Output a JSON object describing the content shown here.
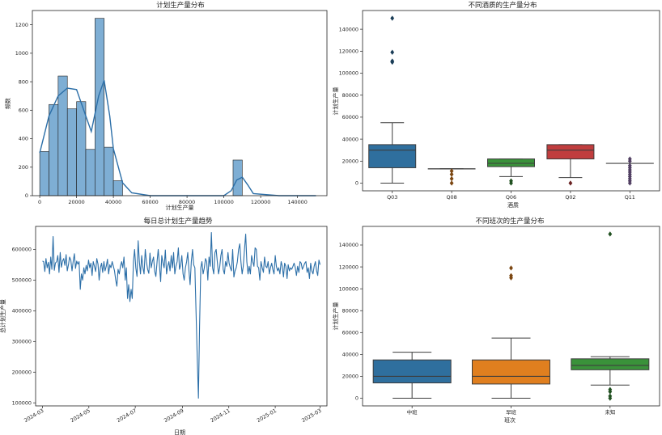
{
  "chart_data": [
    {
      "type": "histogram",
      "title": "计划生产量分布",
      "xlabel": "计划生产量",
      "ylabel": "频数",
      "xlim": [
        -4000,
        156000
      ],
      "ylim": [
        0,
        1300
      ],
      "xticks": [
        0,
        20000,
        40000,
        60000,
        80000,
        100000,
        120000,
        140000
      ],
      "yticks": [
        0,
        200,
        400,
        600,
        800,
        1000,
        1200
      ],
      "bin_width": 5000,
      "bins": [
        {
          "x0": 0,
          "x1": 5000,
          "count": 310
        },
        {
          "x0": 5000,
          "x1": 10000,
          "count": 640
        },
        {
          "x0": 10000,
          "x1": 15000,
          "count": 840
        },
        {
          "x0": 15000,
          "x1": 20000,
          "count": 610
        },
        {
          "x0": 20000,
          "x1": 25000,
          "count": 660
        },
        {
          "x0": 25000,
          "x1": 30000,
          "count": 325
        },
        {
          "x0": 30000,
          "x1": 35000,
          "count": 1245
        },
        {
          "x0": 35000,
          "x1": 40000,
          "count": 340
        },
        {
          "x0": 40000,
          "x1": 45000,
          "count": 105
        },
        {
          "x0": 105000,
          "x1": 110000,
          "count": 250
        }
      ],
      "kde": {
        "x": [
          0,
          5000,
          10000,
          15000,
          20000,
          25000,
          28000,
          32000,
          35000,
          38000,
          40000,
          45000,
          50000,
          60000,
          80000,
          100000,
          104000,
          107000,
          110000,
          113000,
          116000,
          130000,
          150000
        ],
        "y": [
          300,
          560,
          700,
          755,
          745,
          560,
          450,
          700,
          810,
          560,
          330,
          90,
          20,
          0,
          0,
          0,
          35,
          110,
          130,
          75,
          15,
          0,
          0
        ]
      },
      "bar_color": "#7eaed4",
      "line_color": "#2c6fa8"
    },
    {
      "type": "box",
      "title": "不同酒质的生产量分布",
      "xlabel": "酒质",
      "ylabel": "计划生产量",
      "ylim": [
        -7000,
        157000
      ],
      "yticks": [
        0,
        20000,
        40000,
        60000,
        80000,
        100000,
        120000,
        140000
      ],
      "categories": [
        "Q03",
        "Q08",
        "Q06",
        "Q02",
        "Q11"
      ],
      "boxes": [
        {
          "category": "Q03",
          "whisker_low": 0,
          "q1": 14000,
          "median": 30000,
          "q3": 35000,
          "whisker_high": 55000,
          "outliers": [
            110000,
            111000,
            119000,
            150000
          ],
          "color": "#2f6f9e"
        },
        {
          "category": "Q08",
          "whisker_low": 13000,
          "q1": 13000,
          "median": 13000,
          "q3": 13000,
          "whisker_high": 13000,
          "outliers": [
            0,
            4000,
            8000,
            11000
          ],
          "color": "#e07f1f"
        },
        {
          "category": "Q06",
          "whisker_low": 6000,
          "q1": 15000,
          "median": 18000,
          "q3": 22000,
          "whisker_high": 22000,
          "outliers": [
            0,
            2000
          ],
          "color": "#3a923a"
        },
        {
          "category": "Q02",
          "whisker_low": 5000,
          "q1": 22000,
          "median": 30000,
          "q3": 35000,
          "whisker_high": 35000,
          "outliers": [
            0
          ],
          "color": "#c03d3e"
        },
        {
          "category": "Q11",
          "whisker_low": 18000,
          "q1": 18000,
          "median": 18000,
          "q3": 18000,
          "whisker_high": 18000,
          "outliers": [
            0,
            2000,
            4000,
            6000,
            8000,
            10000,
            12000,
            14000,
            16000,
            20000,
            22000
          ],
          "color": "#9372b2"
        }
      ]
    },
    {
      "type": "line",
      "title": "每日总计划生产量趋势",
      "xlabel": "日期",
      "ylabel": "总计划生产量",
      "x_start": "2024-03-01",
      "x_end": "2025-03-01",
      "x_range": [
        "2024-02-21",
        "2025-03-10"
      ],
      "ylim": [
        90000,
        675000
      ],
      "yticks": [
        100000,
        200000,
        300000,
        400000,
        500000,
        600000
      ],
      "xticks": [
        "2024-03",
        "2024-05",
        "2024-07",
        "2024-09",
        "2024-11",
        "2025-01",
        "2025-03"
      ],
      "values": [
        562000,
        560000,
        528000,
        570000,
        540000,
        558000,
        520000,
        575000,
        535000,
        642000,
        532000,
        556000,
        560000,
        580000,
        525000,
        590000,
        542000,
        562000,
        570000,
        548000,
        583000,
        530000,
        550000,
        575000,
        565000,
        530000,
        560000,
        586000,
        538000,
        562000,
        552000,
        560000,
        470000,
        520000,
        500000,
        540000,
        520000,
        548000,
        530000,
        565000,
        540000,
        555000,
        515000,
        560000,
        545000,
        528000,
        570000,
        552000,
        500000,
        540000,
        555000,
        525000,
        560000,
        530000,
        545000,
        568000,
        520000,
        550000,
        540000,
        560000,
        545000,
        530000,
        500000,
        480000,
        535000,
        520000,
        545000,
        560000,
        540000,
        575000,
        500000,
        540000,
        440000,
        485000,
        430000,
        470000,
        440000,
        560000,
        600000,
        540000,
        512000,
        628000,
        560000,
        520000,
        580000,
        540000,
        520000,
        600000,
        560000,
        535000,
        522000,
        588000,
        540000,
        560000,
        575000,
        528000,
        512000,
        560000,
        600000,
        550000,
        495000,
        580000,
        556000,
        540000,
        598000,
        520000,
        545000,
        560000,
        530000,
        580000,
        540000,
        590000,
        520000,
        545000,
        560000,
        605000,
        535000,
        550000,
        580000,
        520000,
        500000,
        540000,
        560000,
        590000,
        530000,
        485000,
        560000,
        600000,
        550000,
        540000,
        400000,
        250000,
        115000,
        350000,
        540000,
        560000,
        520000,
        540000,
        570000,
        560000,
        500000,
        575000,
        545000,
        655000,
        540000,
        520000,
        590000,
        600000,
        560000,
        520000,
        540000,
        580000,
        600000,
        535000,
        520000,
        560000,
        545000,
        590000,
        555000,
        540000,
        530000,
        600000,
        510000,
        530000,
        540000,
        560000,
        600000,
        618000,
        560000,
        520000,
        545000,
        600000,
        650000,
        560000,
        520000,
        545000,
        520000,
        580000,
        560000,
        545000,
        605000,
        600000,
        545000,
        540000,
        500000,
        560000,
        540000,
        525000,
        575000,
        545000,
        540000,
        560000,
        520000,
        540000,
        555000,
        535000,
        520000,
        580000,
        545000,
        530000,
        540000,
        520000,
        560000,
        545000,
        510000,
        555000,
        545000,
        505000,
        550000,
        530000,
        540000,
        535000,
        545000,
        555000,
        540000,
        515000,
        545000,
        525000,
        560000,
        555000,
        535000,
        545000,
        555000,
        560000,
        525000,
        540000,
        505000,
        555000,
        530000,
        520000,
        545000,
        560000,
        530000,
        515000,
        565000,
        550000
      ],
      "line_color": "#2c6fa8"
    },
    {
      "type": "box",
      "title": "不同班次的生产量分布",
      "xlabel": "班次",
      "ylabel": "计划生产量",
      "ylim": [
        -7000,
        157000
      ],
      "yticks": [
        0,
        20000,
        40000,
        60000,
        80000,
        100000,
        120000,
        140000
      ],
      "categories": [
        "中班",
        "早班",
        "未知"
      ],
      "boxes": [
        {
          "category": "中班",
          "whisker_low": 0,
          "q1": 14000,
          "median": 20000,
          "q3": 35000,
          "whisker_high": 42000,
          "outliers": [],
          "color": "#2f6f9e"
        },
        {
          "category": "早班",
          "whisker_low": 0,
          "q1": 13000,
          "median": 20000,
          "q3": 35000,
          "whisker_high": 55000,
          "outliers": [
            110000,
            112000,
            119000
          ],
          "color": "#e07f1f"
        },
        {
          "category": "未知",
          "whisker_low": 12000,
          "q1": 26000,
          "median": 30000,
          "q3": 36000,
          "whisker_high": 38000,
          "outliers": [
            0,
            2000,
            6000,
            8000,
            150000
          ],
          "color": "#3a923a"
        }
      ]
    }
  ]
}
